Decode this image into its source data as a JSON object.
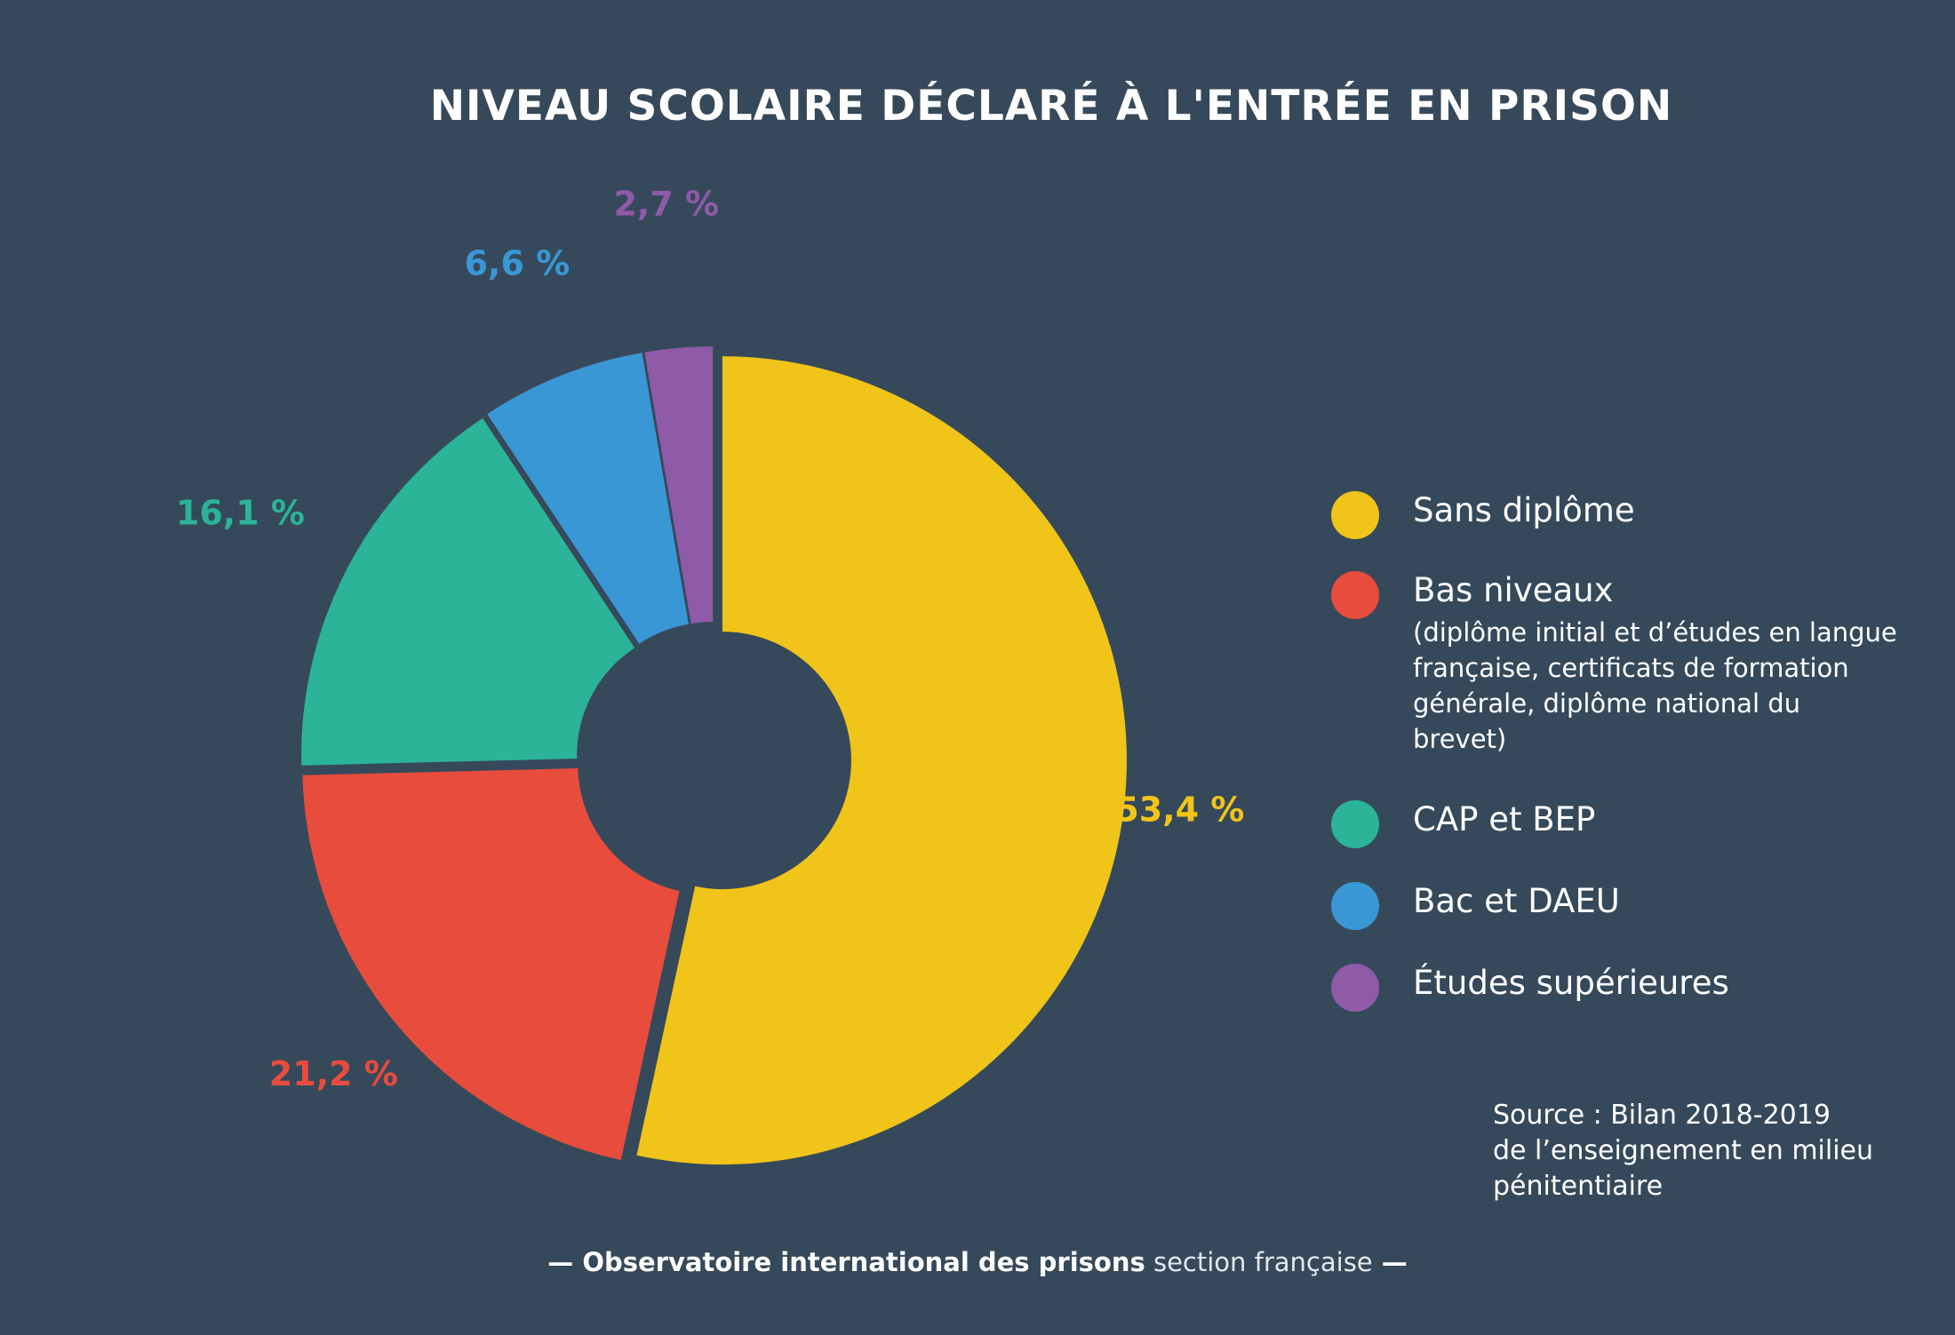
{
  "chart_data": {
    "type": "pie",
    "title": "NIVEAU SCOLAIRE DÉCLARÉ À L'ENTRÉE EN PRISON",
    "categories": [
      "Sans diplôme",
      "Bas niveaux",
      "CAP et BEP",
      "Bac et DAEU",
      "Études supérieures"
    ],
    "values": [
      53.4,
      21.2,
      16.1,
      6.6,
      2.7
    ],
    "value_labels": [
      "53,4 %",
      "21,2 %",
      "16,1 %",
      "6,6 %",
      "2,7 %"
    ],
    "colors": [
      "#f0c419",
      "#e84c3d",
      "#2bb498",
      "#3a97d6",
      "#8f5aa8"
    ],
    "donut": true,
    "legend": [
      {
        "label": "Sans diplôme",
        "detail": ""
      },
      {
        "label": "Bas niveaux",
        "detail": "(diplôme initial et d’études en langue française, certificats de formation générale, diplôme national du brevet)"
      },
      {
        "label": "CAP et BEP",
        "detail": ""
      },
      {
        "label": "Bac et DAEU",
        "detail": ""
      },
      {
        "label": "Études supérieures",
        "detail": ""
      }
    ],
    "legend_position": "right"
  },
  "source": {
    "line1": "Source : Bilan 2018-2019",
    "line2": "de l’enseignement en milieu",
    "line3": "pénitentiaire"
  },
  "footer": {
    "dash_left": "— ",
    "org": "Observatoire international des prisons",
    "section": " section française",
    "dash_right": " —"
  },
  "colors": {
    "background": "#36495b",
    "text": "#ffffff"
  }
}
